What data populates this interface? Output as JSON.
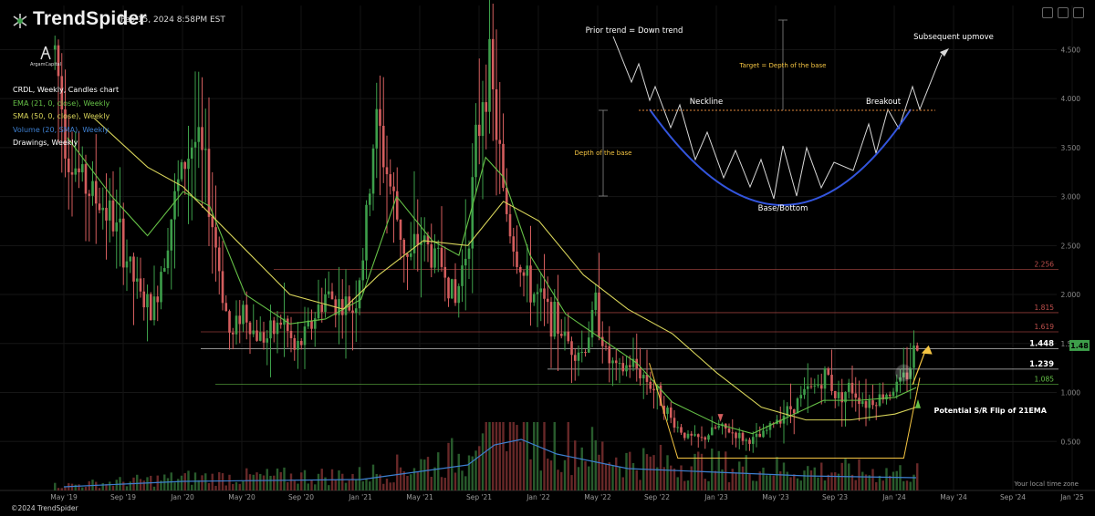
{
  "header": {
    "brand": "TrendSpider",
    "datetime": "Feb 15, 2024 8:58PM EST",
    "badge_text": "ArgamCapital"
  },
  "legend": {
    "items": [
      {
        "label": "CRDL, Weekly, Candles chart",
        "color": "#ffffff"
      },
      {
        "label": "EMA (21, 0, close), Weekly",
        "color": "#66c247"
      },
      {
        "label": "SMA (50, 0, close), Weekly",
        "color": "#d9d55a"
      },
      {
        "label": "Volume (20, SMA), Weekly",
        "color": "#3d7fd0"
      },
      {
        "label": "Drawings, Weekly",
        "color": "#ffffff"
      }
    ]
  },
  "footer": {
    "copyright": "©2024 TrendSpider",
    "timezone": "Your local time zone"
  },
  "icons": [
    "window-close-icon",
    "window-max-icon",
    "window-min-icon",
    "trendspider-logo-icon",
    "argam-badge-icon"
  ],
  "colors": {
    "background": "#000000",
    "up_candle": "#3d9e4a",
    "down_candle": "#d35d5d",
    "ema": "#66c247",
    "sma": "#d9d55a",
    "volume_sma": "#3d7fd0",
    "cup_curve": "#3355dd",
    "annotation_text": "#f5c542",
    "current_price_tag": "#3d9e4a"
  },
  "chart_data": {
    "type": "candlestick",
    "title": "CRDL, Weekly, Candles chart",
    "x_ticks": [
      "May '19",
      "Sep '19",
      "Jan '20",
      "May '20",
      "Sep '20",
      "Jan '21",
      "May '21",
      "Sep '21",
      "Jan '22",
      "May '22",
      "Sep '22",
      "Jan '23",
      "May '23",
      "Sep '23",
      "Jan '24",
      "May '24",
      "Sep '24",
      "Jan '25"
    ],
    "y_ticks": [
      0.5,
      1.0,
      1.5,
      2.0,
      2.5,
      3.0,
      3.5,
      4.0,
      4.5
    ],
    "y_tick_labels": [
      "0.500",
      "1.000",
      "1.500",
      "2.000",
      "2.500",
      "3.000",
      "3.500",
      "4.000",
      "4.500"
    ],
    "ylim": [
      0.0,
      4.95
    ],
    "current_price": 1.48,
    "current_price_label": "1.48",
    "price_path": [
      [
        2019.28,
        4.5
      ],
      [
        2019.35,
        3.5
      ],
      [
        2019.42,
        3.2
      ],
      [
        2019.5,
        3.0
      ],
      [
        2019.58,
        2.85
      ],
      [
        2019.66,
        2.5
      ],
      [
        2019.75,
        2.0
      ],
      [
        2019.83,
        1.8
      ],
      [
        2019.92,
        2.7
      ],
      [
        2020.0,
        3.3
      ],
      [
        2020.06,
        3.6
      ],
      [
        2020.12,
        3.3
      ],
      [
        2020.2,
        2.3
      ],
      [
        2020.27,
        1.5
      ],
      [
        2020.33,
        1.9
      ],
      [
        2020.4,
        1.6
      ],
      [
        2020.48,
        1.55
      ],
      [
        2020.56,
        1.75
      ],
      [
        2020.63,
        1.4
      ],
      [
        2020.72,
        1.7
      ],
      [
        2020.8,
        2.0
      ],
      [
        2020.88,
        1.9
      ],
      [
        2020.96,
        1.85
      ],
      [
        2021.02,
        2.5
      ],
      [
        2021.08,
        3.8
      ],
      [
        2021.13,
        3.4
      ],
      [
        2021.2,
        2.8
      ],
      [
        2021.27,
        2.3
      ],
      [
        2021.33,
        2.6
      ],
      [
        2021.4,
        2.4
      ],
      [
        2021.47,
        2.3
      ],
      [
        2021.53,
        1.9
      ],
      [
        2021.6,
        2.6
      ],
      [
        2021.65,
        3.5
      ],
      [
        2021.7,
        4.4
      ],
      [
        2021.75,
        3.9
      ],
      [
        2021.8,
        3.0
      ],
      [
        2021.86,
        2.5
      ],
      [
        2021.93,
        2.1
      ],
      [
        2022.0,
        1.95
      ],
      [
        2022.08,
        1.75
      ],
      [
        2022.17,
        1.5
      ],
      [
        2022.25,
        1.4
      ],
      [
        2022.32,
        1.9
      ],
      [
        2022.38,
        1.35
      ],
      [
        2022.45,
        1.2
      ],
      [
        2022.52,
        1.3
      ],
      [
        2022.6,
        1.15
      ],
      [
        2022.68,
        0.95
      ],
      [
        2022.75,
        0.7
      ],
      [
        2022.83,
        0.55
      ],
      [
        2022.92,
        0.52
      ],
      [
        2023.0,
        0.65
      ],
      [
        2023.08,
        0.6
      ],
      [
        2023.17,
        0.5
      ],
      [
        2023.25,
        0.55
      ],
      [
        2023.33,
        0.72
      ],
      [
        2023.42,
        0.85
      ],
      [
        2023.5,
        1.0
      ],
      [
        2023.58,
        1.1
      ],
      [
        2023.62,
        1.2
      ],
      [
        2023.67,
        0.95
      ],
      [
        2023.75,
        1.05
      ],
      [
        2023.83,
        0.9
      ],
      [
        2023.92,
        0.95
      ],
      [
        2024.0,
        1.05
      ],
      [
        2024.06,
        1.15
      ],
      [
        2024.12,
        1.48
      ]
    ],
    "ema21_path": [
      [
        2019.35,
        3.6
      ],
      [
        2019.6,
        3.0
      ],
      [
        2019.8,
        2.6
      ],
      [
        2020.0,
        3.05
      ],
      [
        2020.15,
        2.9
      ],
      [
        2020.35,
        2.0
      ],
      [
        2020.6,
        1.7
      ],
      [
        2020.8,
        1.75
      ],
      [
        2021.0,
        1.95
      ],
      [
        2021.2,
        3.0
      ],
      [
        2021.4,
        2.55
      ],
      [
        2021.55,
        2.4
      ],
      [
        2021.7,
        3.4
      ],
      [
        2021.8,
        3.2
      ],
      [
        2021.95,
        2.4
      ],
      [
        2022.15,
        1.8
      ],
      [
        2022.35,
        1.55
      ],
      [
        2022.55,
        1.3
      ],
      [
        2022.75,
        0.9
      ],
      [
        2023.0,
        0.68
      ],
      [
        2023.2,
        0.58
      ],
      [
        2023.4,
        0.75
      ],
      [
        2023.6,
        0.92
      ],
      [
        2023.8,
        0.92
      ],
      [
        2024.0,
        0.95
      ],
      [
        2024.12,
        1.05
      ]
    ],
    "sma50_path": [
      [
        2019.5,
        3.8
      ],
      [
        2019.8,
        3.3
      ],
      [
        2020.0,
        3.1
      ],
      [
        2020.3,
        2.55
      ],
      [
        2020.6,
        2.0
      ],
      [
        2020.9,
        1.85
      ],
      [
        2021.1,
        2.2
      ],
      [
        2021.35,
        2.55
      ],
      [
        2021.6,
        2.5
      ],
      [
        2021.8,
        2.95
      ],
      [
        2022.0,
        2.75
      ],
      [
        2022.25,
        2.2
      ],
      [
        2022.5,
        1.85
      ],
      [
        2022.75,
        1.6
      ],
      [
        2023.0,
        1.2
      ],
      [
        2023.25,
        0.85
      ],
      [
        2023.5,
        0.72
      ],
      [
        2023.75,
        0.72
      ],
      [
        2024.0,
        0.78
      ],
      [
        2024.12,
        0.85
      ]
    ],
    "volume_sma_path": [
      [
        2019.33,
        0.02
      ],
      [
        2020.0,
        0.05
      ],
      [
        2021.0,
        0.06
      ],
      [
        2021.6,
        0.14
      ],
      [
        2021.75,
        0.25
      ],
      [
        2021.9,
        0.28
      ],
      [
        2022.1,
        0.2
      ],
      [
        2022.5,
        0.12
      ],
      [
        2023.0,
        0.1
      ],
      [
        2023.5,
        0.08
      ],
      [
        2024.12,
        0.07
      ]
    ],
    "horizontal_levels": [
      {
        "value": 2.256,
        "label": "2.256",
        "color": "#c0504d"
      },
      {
        "value": 1.815,
        "label": "1.815",
        "color": "#c0504d"
      },
      {
        "value": 1.619,
        "label": "1.619",
        "color": "#c0504d"
      },
      {
        "value": 1.448,
        "label": "1.448",
        "color": "#ffffff"
      },
      {
        "value": 1.239,
        "label": "1.239",
        "color": "#ffffff"
      },
      {
        "value": 1.085,
        "label": "1.085",
        "color": "#66c247"
      }
    ],
    "annotations": [
      {
        "text": "Potential S/R Flip of 21EMA",
        "color": "#ffffff"
      }
    ],
    "cup_diagram": {
      "prior_trend": "Prior trend = Down trend",
      "target": "Target = Depth of the base",
      "subsequent": "Subsequent upmove",
      "neckline": "Neckline",
      "breakout": "Breakout",
      "depth": "Depth of the base",
      "base": "Base/Bottom"
    }
  }
}
